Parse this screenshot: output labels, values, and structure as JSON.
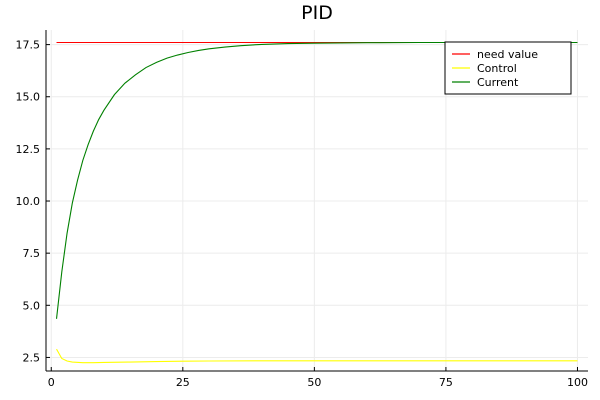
{
  "chart_data": {
    "type": "line",
    "title": "PID",
    "xlabel": "",
    "ylabel": "",
    "xlim": [
      -1,
      102
    ],
    "ylim": [
      1.85,
      18.2
    ],
    "x_ticks": [
      0,
      25,
      50,
      75,
      100
    ],
    "x_tick_labels": [
      "0",
      "25",
      "50",
      "75",
      "100"
    ],
    "y_ticks": [
      2.5,
      5.0,
      7.5,
      10.0,
      12.5,
      15.0,
      17.5
    ],
    "y_tick_labels": [
      "2.5",
      "5.0",
      "7.5",
      "10.0",
      "12.5",
      "15.0",
      "17.5"
    ],
    "grid": true,
    "legend_position": "top-right",
    "series": [
      {
        "name": "need value",
        "color": "#ff0000",
        "x": [
          1,
          100
        ],
        "y": [
          17.6,
          17.6
        ]
      },
      {
        "name": "Control",
        "color": "#ffff00",
        "x": [
          1,
          2,
          3,
          4,
          6,
          8,
          10,
          15,
          20,
          25,
          30,
          40,
          50,
          60,
          70,
          80,
          90,
          100
        ],
        "y": [
          2.9,
          2.45,
          2.33,
          2.28,
          2.25,
          2.25,
          2.26,
          2.28,
          2.3,
          2.32,
          2.33,
          2.34,
          2.34,
          2.34,
          2.34,
          2.34,
          2.34,
          2.34
        ]
      },
      {
        "name": "Current",
        "color": "#008000",
        "x": [
          1,
          2,
          3,
          4,
          5,
          6,
          7,
          8,
          9,
          10,
          12,
          14,
          16,
          18,
          20,
          22,
          24,
          26,
          28,
          30,
          33,
          36,
          40,
          45,
          50,
          55,
          60,
          70,
          80,
          90,
          100
        ],
        "y": [
          4.35,
          6.6,
          8.45,
          9.9,
          11.0,
          11.95,
          12.7,
          13.35,
          13.9,
          14.35,
          15.1,
          15.65,
          16.05,
          16.4,
          16.65,
          16.85,
          17.0,
          17.12,
          17.22,
          17.3,
          17.38,
          17.45,
          17.51,
          17.55,
          17.57,
          17.58,
          17.59,
          17.6,
          17.6,
          17.6,
          17.6
        ]
      }
    ]
  }
}
